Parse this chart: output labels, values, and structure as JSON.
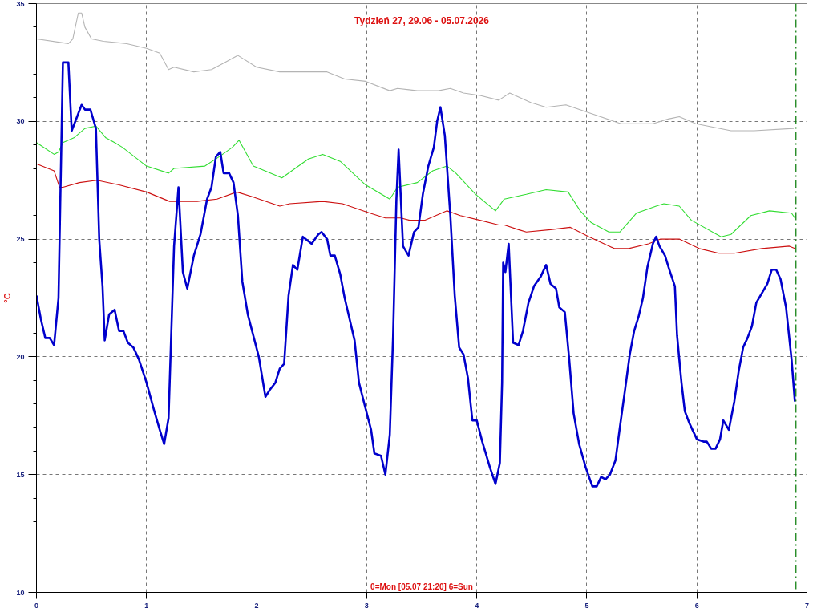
{
  "chart_data": {
    "type": "line",
    "title": "Tydzień 27, 29.06 - 05.07.2026",
    "ylabel": "°C",
    "annotations": [
      "0=Mon [05.07 21:20] 6=Sun"
    ],
    "xlim": [
      0,
      7
    ],
    "xticks": [
      0,
      1,
      2,
      3,
      4,
      5,
      6,
      7
    ],
    "ylim": [
      10,
      35
    ],
    "yticks": [
      10,
      {
        "value": 11,
        "label": null
      },
      {
        "value": 12,
        "label": null
      },
      {
        "value": 13,
        "label": null
      },
      {
        "value": 14,
        "label": null
      },
      15,
      {
        "value": 16,
        "label": null
      },
      {
        "value": 17,
        "label": null
      },
      {
        "value": 18,
        "label": null
      },
      {
        "value": 19,
        "label": null
      },
      20,
      {
        "value": 21,
        "label": null
      },
      {
        "value": 22,
        "label": null
      },
      {
        "value": 23,
        "label": null
      },
      {
        "value": 24,
        "label": null
      },
      25,
      {
        "value": 26,
        "label": null
      },
      {
        "value": 27,
        "label": null
      },
      {
        "value": 28,
        "label": null
      },
      {
        "value": 29,
        "label": null
      },
      30,
      {
        "value": 31,
        "label": null
      },
      {
        "value": 32,
        "label": null
      },
      {
        "value": 33,
        "label": null
      },
      {
        "value": 34,
        "label": null
      },
      35
    ],
    "grid": true,
    "marker": "none",
    "line_style": "solid",
    "ref_lines": [
      {
        "axis": "x",
        "value": 6.9,
        "label": null,
        "color": "#007700",
        "line_style": "dashdot"
      }
    ],
    "series": [
      {
        "color": "#b4b4b4",
        "x": [
          0,
          0.29,
          0.33,
          0.38,
          0.41,
          0.44,
          0.5,
          0.61,
          0.82,
          1.0,
          1.12,
          1.2,
          1.25,
          1.43,
          1.59,
          1.71,
          1.83,
          2.0,
          2.21,
          2.41,
          2.64,
          2.8,
          2.99,
          3.21,
          3.28,
          3.46,
          3.65,
          3.76,
          3.88,
          4.03,
          4.2,
          4.3,
          4.49,
          4.63,
          4.81,
          5.06,
          5.31,
          5.6,
          5.74,
          5.84,
          5.99,
          6.31,
          6.52,
          6.88
        ],
        "values": [
          33.5,
          33.3,
          33.5,
          34.6,
          34.6,
          34.0,
          33.5,
          33.4,
          33.3,
          33.1,
          32.9,
          32.2,
          32.3,
          32.1,
          32.2,
          32.5,
          32.8,
          32.3,
          32.1,
          32.1,
          32.1,
          31.8,
          31.7,
          31.3,
          31.4,
          31.3,
          31.3,
          31.4,
          31.2,
          31.1,
          30.9,
          31.2,
          30.8,
          30.6,
          30.7,
          30.3,
          29.9,
          29.9,
          30.1,
          30.2,
          29.9,
          29.6,
          29.6,
          29.7
        ]
      },
      {
        "color": "#33dd33",
        "x": [
          0,
          0.16,
          0.2,
          0.24,
          0.34,
          0.44,
          0.54,
          0.63,
          0.71,
          0.78,
          1.0,
          1.2,
          1.25,
          1.53,
          1.66,
          1.78,
          1.84,
          1.97,
          2.23,
          2.35,
          2.47,
          2.6,
          2.76,
          2.99,
          3.21,
          3.28,
          3.46,
          3.6,
          3.73,
          3.81,
          3.99,
          4.17,
          4.25,
          4.45,
          4.63,
          4.83,
          4.94,
          5.04,
          5.2,
          5.3,
          5.45,
          5.63,
          5.7,
          5.84,
          5.95,
          6.22,
          6.31,
          6.49,
          6.66,
          6.86,
          6.89
        ],
        "values": [
          29.1,
          28.6,
          28.7,
          29.1,
          29.3,
          29.7,
          29.8,
          29.3,
          29.1,
          28.9,
          28.1,
          27.8,
          28.0,
          28.1,
          28.5,
          28.9,
          29.2,
          28.1,
          27.6,
          28.0,
          28.4,
          28.6,
          28.3,
          27.3,
          26.7,
          27.2,
          27.4,
          27.9,
          28.1,
          27.8,
          26.9,
          26.2,
          26.7,
          26.9,
          27.1,
          27.0,
          26.2,
          25.7,
          25.3,
          25.3,
          26.1,
          26.4,
          26.5,
          26.4,
          25.8,
          25.1,
          25.2,
          26.0,
          26.2,
          26.1,
          25.9
        ]
      },
      {
        "color": "#cc1111",
        "x": [
          0,
          0.16,
          0.21,
          0.24,
          0.39,
          0.55,
          0.75,
          1.0,
          1.21,
          1.46,
          1.64,
          1.82,
          1.96,
          2.21,
          2.3,
          2.6,
          2.78,
          3.03,
          3.17,
          3.31,
          3.39,
          3.53,
          3.73,
          3.85,
          4.03,
          4.2,
          4.25,
          4.38,
          4.45,
          4.67,
          4.85,
          5.02,
          5.25,
          5.38,
          5.56,
          5.67,
          5.84,
          6.02,
          6.2,
          6.34,
          6.59,
          6.84,
          6.89
        ],
        "values": [
          28.2,
          27.9,
          27.2,
          27.2,
          27.4,
          27.5,
          27.3,
          27.0,
          26.6,
          26.6,
          26.7,
          27.0,
          26.8,
          26.4,
          26.5,
          26.6,
          26.5,
          26.1,
          25.9,
          25.9,
          25.8,
          25.8,
          26.2,
          26.0,
          25.8,
          25.6,
          25.6,
          25.4,
          25.3,
          25.4,
          25.5,
          25.1,
          24.6,
          24.6,
          24.8,
          25.0,
          25.0,
          24.6,
          24.4,
          24.4,
          24.6,
          24.7,
          24.6
        ]
      },
      {
        "color": "#0000cc",
        "x": [
          0,
          0.04,
          0.08,
          0.12,
          0.16,
          0.2,
          0.24,
          0.29,
          0.32,
          0.41,
          0.44,
          0.49,
          0.54,
          0.57,
          0.6,
          0.62,
          0.66,
          0.71,
          0.75,
          0.79,
          0.83,
          0.88,
          0.93,
          1.0,
          1.07,
          1.12,
          1.16,
          1.2,
          1.25,
          1.29,
          1.33,
          1.37,
          1.43,
          1.49,
          1.55,
          1.59,
          1.63,
          1.67,
          1.7,
          1.75,
          1.79,
          1.83,
          1.87,
          1.92,
          1.97,
          2.02,
          2.08,
          2.12,
          2.17,
          2.21,
          2.25,
          2.29,
          2.33,
          2.37,
          2.42,
          2.5,
          2.56,
          2.59,
          2.64,
          2.67,
          2.71,
          2.76,
          2.8,
          2.89,
          2.93,
          2.99,
          3.04,
          3.07,
          3.13,
          3.17,
          3.21,
          3.24,
          3.27,
          3.29,
          3.33,
          3.38,
          3.43,
          3.47,
          3.51,
          3.56,
          3.61,
          3.64,
          3.67,
          3.71,
          3.76,
          3.8,
          3.84,
          3.88,
          3.92,
          3.96,
          4.0,
          4.05,
          4.12,
          4.17,
          4.21,
          4.23,
          4.24,
          4.26,
          4.29,
          4.33,
          4.38,
          4.42,
          4.47,
          4.52,
          4.58,
          4.63,
          4.67,
          4.72,
          4.75,
          4.8,
          4.84,
          4.88,
          4.93,
          4.99,
          5.05,
          5.09,
          5.13,
          5.17,
          5.21,
          5.26,
          5.3,
          5.35,
          5.39,
          5.43,
          5.47,
          5.51,
          5.55,
          5.6,
          5.63,
          5.66,
          5.71,
          5.75,
          5.8,
          5.82,
          5.86,
          5.89,
          5.93,
          5.97,
          6.0,
          6.06,
          6.09,
          6.13,
          6.17,
          6.21,
          6.24,
          6.29,
          6.34,
          6.38,
          6.42,
          6.46,
          6.5,
          6.54,
          6.59,
          6.64,
          6.68,
          6.72,
          6.76,
          6.81,
          6.86,
          6.89
        ],
        "values": [
          22.6,
          21.6,
          20.8,
          20.8,
          20.5,
          22.5,
          32.5,
          32.5,
          29.6,
          30.7,
          30.5,
          30.5,
          29.7,
          25.0,
          23.0,
          20.7,
          21.8,
          22.0,
          21.1,
          21.1,
          20.6,
          20.4,
          19.9,
          18.9,
          17.7,
          16.9,
          16.3,
          17.4,
          24.7,
          27.2,
          23.6,
          22.9,
          24.3,
          25.2,
          26.7,
          27.2,
          28.5,
          28.7,
          27.8,
          27.8,
          27.4,
          26.0,
          23.2,
          21.8,
          20.9,
          20.0,
          18.3,
          18.6,
          18.9,
          19.5,
          19.7,
          22.6,
          23.9,
          23.7,
          25.1,
          24.8,
          25.2,
          25.3,
          25.0,
          24.3,
          24.3,
          23.5,
          22.5,
          20.7,
          18.9,
          17.8,
          16.9,
          15.9,
          15.8,
          15.0,
          16.7,
          20.9,
          26.7,
          28.8,
          24.7,
          24.3,
          25.3,
          25.5,
          26.9,
          28.1,
          28.9,
          30.0,
          30.6,
          29.4,
          26.0,
          22.6,
          20.4,
          20.1,
          19.1,
          17.3,
          17.3,
          16.4,
          15.3,
          14.6,
          15.5,
          18.9,
          24.0,
          23.6,
          24.8,
          20.6,
          20.5,
          21.1,
          22.3,
          23.0,
          23.4,
          23.9,
          23.1,
          22.9,
          22.1,
          21.9,
          19.9,
          17.6,
          16.3,
          15.3,
          14.5,
          14.5,
          14.9,
          14.8,
          15.0,
          15.6,
          17.0,
          18.7,
          20.1,
          21.1,
          21.7,
          22.5,
          23.8,
          24.8,
          25.1,
          24.7,
          24.3,
          23.7,
          23.0,
          20.9,
          18.9,
          17.7,
          17.2,
          16.8,
          16.5,
          16.4,
          16.4,
          16.1,
          16.1,
          16.5,
          17.3,
          16.9,
          18.1,
          19.4,
          20.4,
          20.8,
          21.3,
          22.3,
          22.7,
          23.1,
          23.7,
          23.7,
          23.3,
          22.1,
          19.9,
          18.1
        ]
      }
    ]
  }
}
